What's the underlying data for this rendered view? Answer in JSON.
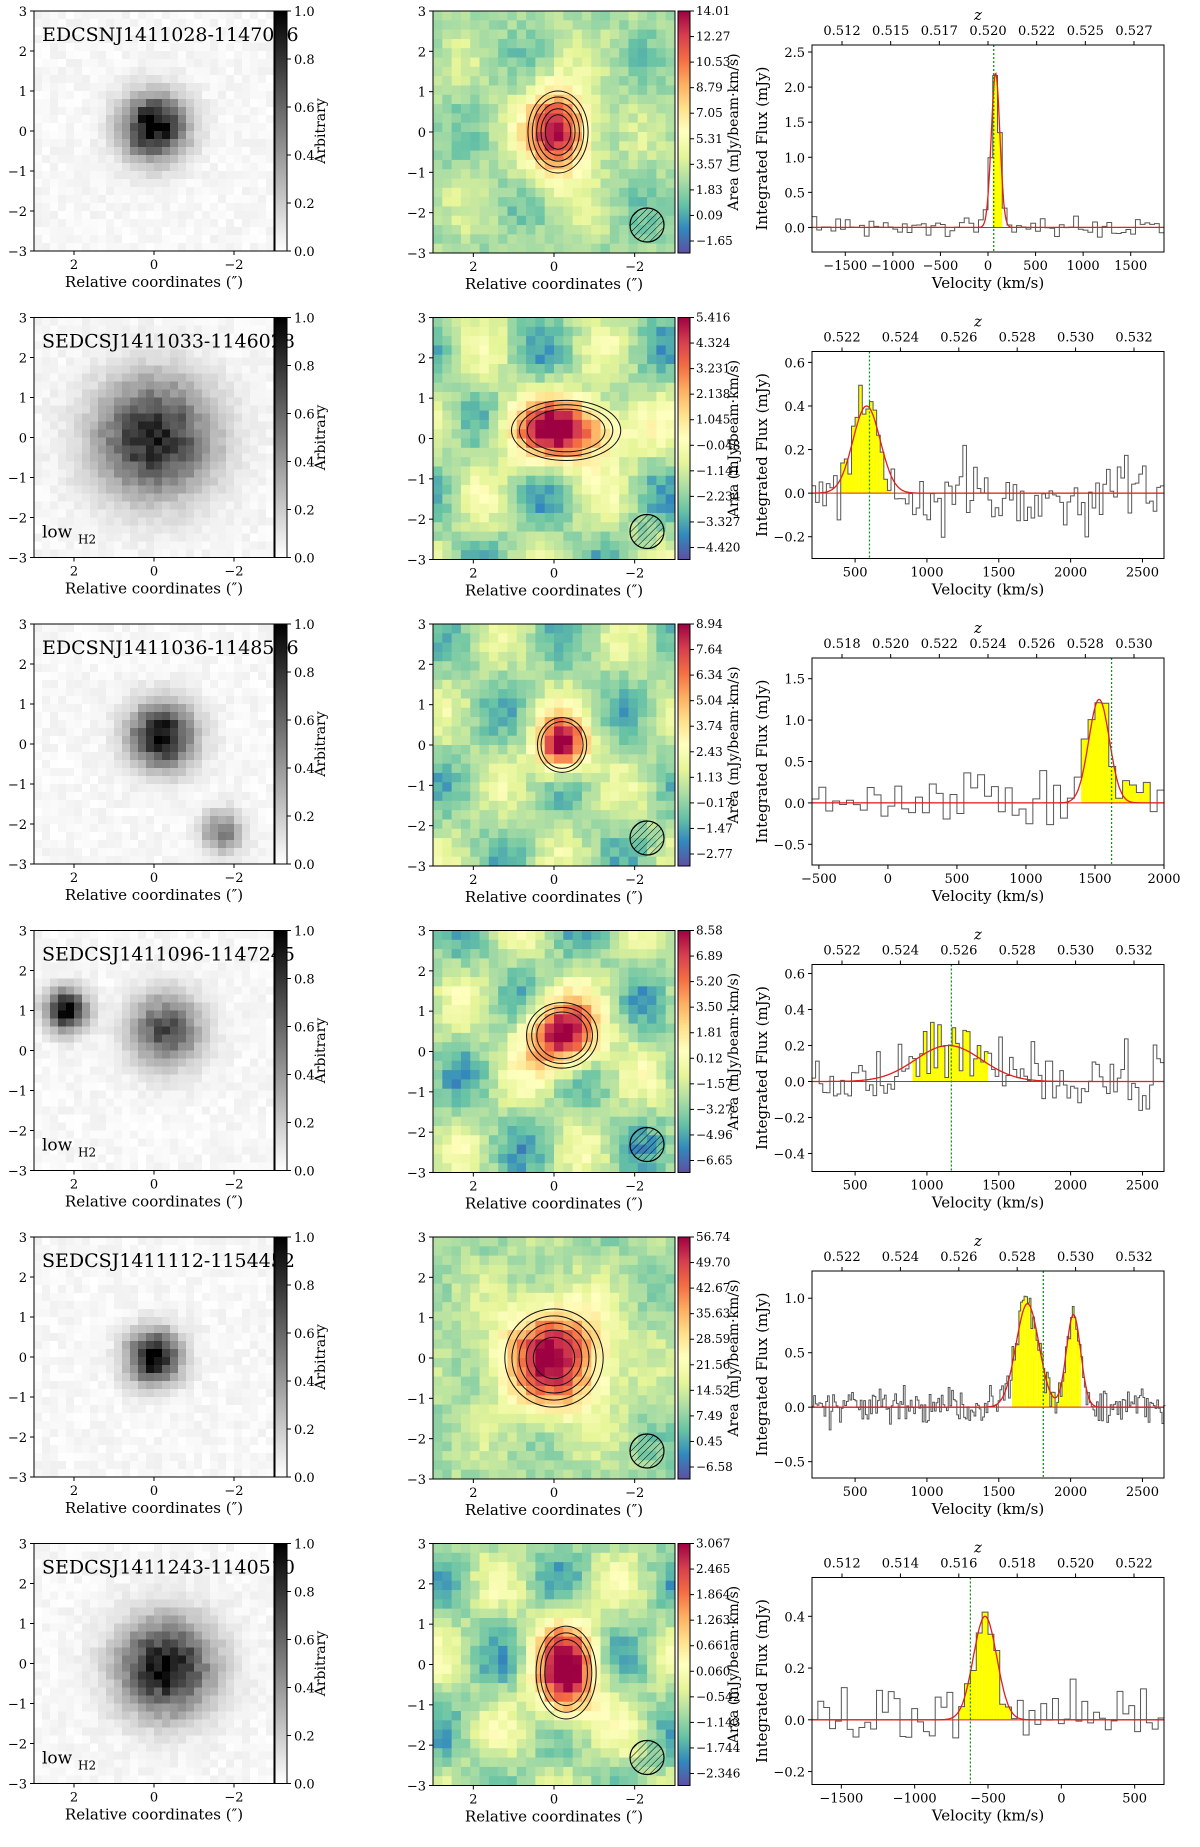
{
  "figure": {
    "axis_label_coords": "Relative coordinates (″)",
    "optical_cbar_label": "Arbitrary",
    "moment_cbar_label": "Area (mJy/beam·km/s)",
    "spectrum_ylabel": "Integrated Flux (mJy)",
    "spectrum_xlabel": "Velocity (km/s)",
    "z_label": "z",
    "low_h2_main": "low",
    "low_h2_sub": "H2",
    "colors": {
      "spectrum_line": "#555555",
      "fill": "#ffff00",
      "fit": "#e0201b",
      "marker": "#1a8f1a"
    }
  },
  "chart_data": [
    {
      "type": "panel-row",
      "galaxy": "EDCSNJ1411028-1147006",
      "low_h2": false,
      "optical": {
        "cbar_ticks": [
          "0.0",
          "0.2",
          "0.4",
          "0.6",
          "0.8",
          "1.0"
        ],
        "x_ticks": [
          "2",
          "0",
          "−2"
        ],
        "y_ticks": [
          "−3",
          "−2",
          "−1",
          "0",
          "1",
          "2",
          "3"
        ],
        "source": {
          "x": 0.0,
          "y": 0.1,
          "sigma": 0.55,
          "amp": 1.0
        },
        "extra_sources": []
      },
      "moment": {
        "cbar_ticks": [
          "−1.65",
          "0.09",
          "1.83",
          "3.57",
          "5.31",
          "7.05",
          "8.79",
          "10.53",
          "12.27",
          "14.01"
        ],
        "x_ticks": [
          "2",
          "0",
          "−2"
        ],
        "y_ticks": [
          "−3",
          "−2",
          "−1",
          "0",
          "1",
          "2",
          "3"
        ],
        "peak": {
          "x": -0.1,
          "y": 0.0,
          "sx": 0.55,
          "sy": 0.75
        },
        "contours": 5,
        "noise_level": 0.25
      },
      "spectrum": {
        "xlim": [
          -1850,
          1850
        ],
        "ylim": [
          -0.35,
          2.6
        ],
        "x_ticks": [
          -1500,
          -1000,
          -500,
          0,
          500,
          1000,
          1500
        ],
        "y_ticks": [
          0.0,
          0.5,
          1.0,
          1.5,
          2.0,
          2.5
        ],
        "z_ticks": [
          "0.512",
          "0.515",
          "0.517",
          "0.520",
          "0.522",
          "0.525",
          "0.527"
        ],
        "peak": {
          "v": 80,
          "amp": 2.2,
          "sigma": 45
        },
        "fill_range": [
          30,
          190
        ],
        "marker_v": 60,
        "noise": 0.1,
        "bin": 50
      }
    },
    {
      "type": "panel-row",
      "galaxy": "SEDCSJ1411033-1146028",
      "low_h2": true,
      "optical": {
        "cbar_ticks": [
          "0.0",
          "0.2",
          "0.4",
          "0.6",
          "0.8",
          "1.0"
        ],
        "x_ticks": [
          "2",
          "0",
          "−2"
        ],
        "y_ticks": [
          "−3",
          "−2",
          "−1",
          "0",
          "1",
          "2",
          "3"
        ],
        "source": {
          "x": 0.0,
          "y": 0.0,
          "sigma": 1.0,
          "amp": 0.85
        },
        "extra_sources": []
      },
      "moment": {
        "cbar_ticks": [
          "−4.420",
          "−3.327",
          "−2.234",
          "−1.141",
          "−0.048",
          "1.045",
          "2.138",
          "3.231",
          "4.324",
          "5.416"
        ],
        "x_ticks": [
          "2",
          "0",
          "−2"
        ],
        "y_ticks": [
          "−3",
          "−2",
          "−1",
          "0",
          "1",
          "2",
          "3"
        ],
        "peak": {
          "x": -0.3,
          "y": 0.2,
          "sx": 1.0,
          "sy": 0.55
        },
        "contours": 3,
        "noise_level": 0.5
      },
      "spectrum": {
        "xlim": [
          200,
          2650
        ],
        "ylim": [
          -0.3,
          0.65
        ],
        "x_ticks": [
          500,
          1000,
          1500,
          2000,
          2500
        ],
        "y_ticks": [
          -0.2,
          0.0,
          0.2,
          0.4,
          0.6
        ],
        "z_ticks": [
          "0.522",
          "0.524",
          "0.526",
          "0.528",
          "0.530",
          "0.532"
        ],
        "peak": {
          "v": 580,
          "amp": 0.4,
          "sigma": 95
        },
        "fill_range": [
          380,
          770
        ],
        "marker_v": 600,
        "noise": 0.12,
        "bin": 25
      }
    },
    {
      "type": "panel-row",
      "galaxy": "EDCSNJ1411036-1148506",
      "low_h2": false,
      "optical": {
        "cbar_ticks": [
          "0.0",
          "0.2",
          "0.4",
          "0.6",
          "0.8",
          "1.0"
        ],
        "x_ticks": [
          "2",
          "0",
          "−2"
        ],
        "y_ticks": [
          "−3",
          "−2",
          "−1",
          "0",
          "1",
          "2",
          "3"
        ],
        "source": {
          "x": -0.2,
          "y": 0.2,
          "sigma": 0.55,
          "amp": 0.95
        },
        "extra_sources": [
          {
            "x": -1.7,
            "y": -2.2,
            "sigma": 0.35,
            "amp": 0.5
          }
        ]
      },
      "moment": {
        "cbar_ticks": [
          "−2.77",
          "−1.47",
          "−0.17",
          "1.13",
          "2.43",
          "3.74",
          "5.04",
          "6.34",
          "7.64",
          "8.94"
        ],
        "x_ticks": [
          "2",
          "0",
          "−2"
        ],
        "y_ticks": [
          "−3",
          "−2",
          "−1",
          "0",
          "1",
          "2",
          "3"
        ],
        "peak": {
          "x": -0.2,
          "y": 0.0,
          "sx": 0.45,
          "sy": 0.5
        },
        "contours": 2,
        "noise_level": 0.4
      },
      "spectrum": {
        "xlim": [
          -550,
          2000
        ],
        "ylim": [
          -0.75,
          1.75
        ],
        "x_ticks": [
          -500,
          0,
          500,
          1000,
          1500,
          2000
        ],
        "y_ticks": [
          -0.5,
          0.0,
          0.5,
          1.0,
          1.5
        ],
        "z_ticks": [
          "0.518",
          "0.520",
          "0.522",
          "0.524",
          "0.526",
          "0.528",
          "0.530"
        ],
        "peak": {
          "v": 1530,
          "amp": 1.25,
          "sigma": 75
        },
        "fill_range": [
          1390,
          1900
        ],
        "marker_v": 1620,
        "noise": 0.22,
        "bin": 50
      }
    },
    {
      "type": "panel-row",
      "galaxy": "SEDCSJ1411096-1147245",
      "low_h2": true,
      "optical": {
        "cbar_ticks": [
          "0.0",
          "0.2",
          "0.4",
          "0.6",
          "0.8",
          "1.0"
        ],
        "x_ticks": [
          "2",
          "0",
          "−2"
        ],
        "y_ticks": [
          "−3",
          "−2",
          "−1",
          "0",
          "1",
          "2",
          "3"
        ],
        "source": {
          "x": -0.3,
          "y": 0.5,
          "sigma": 0.6,
          "amp": 0.7
        },
        "extra_sources": [
          {
            "x": 2.2,
            "y": 1.0,
            "sigma": 0.35,
            "amp": 1.0
          }
        ]
      },
      "moment": {
        "cbar_ticks": [
          "−6.65",
          "−4.96",
          "−3.27",
          "−1.57",
          "0.12",
          "1.81",
          "3.50",
          "5.20",
          "6.89",
          "8.58"
        ],
        "x_ticks": [
          "2",
          "0",
          "−2"
        ],
        "y_ticks": [
          "−3",
          "−2",
          "−1",
          "0",
          "1",
          "2",
          "3"
        ],
        "peak": {
          "x": -0.2,
          "y": 0.4,
          "sx": 0.65,
          "sy": 0.6
        },
        "contours": 3,
        "noise_level": 0.5
      },
      "spectrum": {
        "xlim": [
          200,
          2650
        ],
        "ylim": [
          -0.5,
          0.65
        ],
        "x_ticks": [
          500,
          1000,
          1500,
          2000,
          2500
        ],
        "y_ticks": [
          -0.4,
          -0.2,
          0.0,
          0.2,
          0.4,
          0.6
        ],
        "z_ticks": [
          "0.522",
          "0.524",
          "0.526",
          "0.528",
          "0.530",
          "0.532"
        ],
        "peak": {
          "v": 1150,
          "amp": 0.2,
          "sigma": 230
        },
        "fill_range": [
          900,
          1430
        ],
        "marker_v": 1170,
        "noise": 0.13,
        "bin": 25
      }
    },
    {
      "type": "panel-row",
      "galaxy": "SEDCSJ1411112-1154452",
      "low_h2": false,
      "optical": {
        "cbar_ticks": [
          "0.0",
          "0.2",
          "0.4",
          "0.6",
          "0.8",
          "1.0"
        ],
        "x_ticks": [
          "2",
          "0",
          "−2"
        ],
        "y_ticks": [
          "−3",
          "−2",
          "−1",
          "0",
          "1",
          "2",
          "3"
        ],
        "source": {
          "x": 0.0,
          "y": 0.0,
          "sigma": 0.45,
          "amp": 1.0
        },
        "extra_sources": []
      },
      "moment": {
        "cbar_ticks": [
          "−6.58",
          "0.45",
          "7.49",
          "14.52",
          "21.56",
          "28.59",
          "35.63",
          "42.67",
          "49.70",
          "56.74"
        ],
        "x_ticks": [
          "2",
          "0",
          "−2"
        ],
        "y_ticks": [
          "−3",
          "−2",
          "−1",
          "0",
          "1",
          "2",
          "3"
        ],
        "peak": {
          "x": 0.0,
          "y": 0.0,
          "sx": 0.9,
          "sy": 0.9
        },
        "contours": 5,
        "noise_level": 0.2
      },
      "spectrum": {
        "xlim": [
          200,
          2650
        ],
        "ylim": [
          -0.65,
          1.25
        ],
        "x_ticks": [
          500,
          1000,
          1500,
          2000,
          2500
        ],
        "y_ticks": [
          -0.5,
          0.0,
          0.5,
          1.0
        ],
        "z_ticks": [
          "0.522",
          "0.524",
          "0.526",
          "0.528",
          "0.530",
          "0.532"
        ],
        "peak": {
          "v": 1700,
          "amp": 0.95,
          "sigma": 80
        },
        "second_peak": {
          "v": 2020,
          "amp": 0.85,
          "sigma": 50
        },
        "fill_range": [
          1590,
          2080
        ],
        "marker_v": 1810,
        "noise": 0.12,
        "bin": 12
      }
    },
    {
      "type": "panel-row",
      "galaxy": "SEDCSJ1411243-1140510",
      "low_h2": true,
      "optical": {
        "cbar_ticks": [
          "0.0",
          "0.2",
          "0.4",
          "0.6",
          "0.8",
          "1.0"
        ],
        "x_ticks": [
          "2",
          "0",
          "−2"
        ],
        "y_ticks": [
          "−3",
          "−2",
          "−1",
          "0",
          "1",
          "2",
          "3"
        ],
        "source": {
          "x": -0.3,
          "y": -0.1,
          "sigma": 0.8,
          "amp": 0.95
        },
        "extra_sources": []
      },
      "moment": {
        "cbar_ticks": [
          "−2.346",
          "−1.744",
          "−1.143",
          "−0.542",
          "0.060",
          "0.661",
          "1.263",
          "1.864",
          "2.465",
          "3.067"
        ],
        "x_ticks": [
          "2",
          "0",
          "−2"
        ],
        "y_ticks": [
          "−3",
          "−2",
          "−1",
          "0",
          "1",
          "2",
          "3"
        ],
        "peak": {
          "x": -0.3,
          "y": -0.2,
          "sx": 0.55,
          "sy": 0.85
        },
        "contours": 3,
        "noise_level": 0.5
      },
      "spectrum": {
        "xlim": [
          -1700,
          700
        ],
        "ylim": [
          -0.25,
          0.55
        ],
        "x_ticks": [
          -1500,
          -1000,
          -500,
          0,
          500
        ],
        "y_ticks": [
          -0.2,
          0.0,
          0.2,
          0.4
        ],
        "z_ticks": [
          "0.512",
          "0.514",
          "0.516",
          "0.518",
          "0.520",
          "0.522"
        ],
        "peak": {
          "v": -520,
          "amp": 0.4,
          "sigma": 80
        },
        "fill_range": [
          -700,
          -330
        ],
        "marker_v": -620,
        "noise": 0.08,
        "bin": 40
      }
    }
  ]
}
